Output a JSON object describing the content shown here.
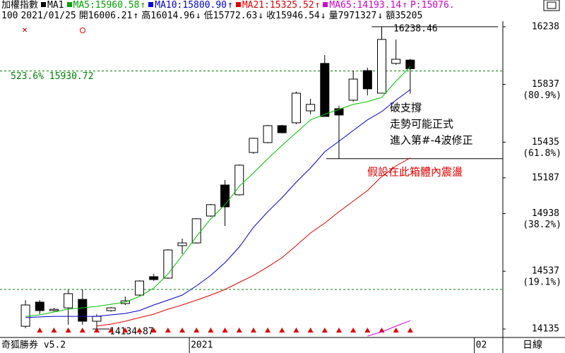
{
  "header": {
    "line1": [
      {
        "text": "加權指數",
        "color": "#000000"
      },
      {
        "text": "MA1",
        "color": "#000000"
      },
      {
        "text": "MA5:15960.58",
        "color": "#00a000"
      },
      {
        "text": "↑",
        "color": "#00a000"
      },
      {
        "text": "MA10:15800.90",
        "color": "#0000d0"
      },
      {
        "text": "↑",
        "color": "#0000d0"
      },
      {
        "text": "MA21:15325.52",
        "color": "#e00000"
      },
      {
        "text": "↑",
        "color": "#e00000"
      },
      {
        "text": "MA65:14193.14",
        "color": "#d000d0"
      },
      {
        "text": "↑",
        "color": "#d000d0"
      },
      {
        "text": "P:15076.",
        "color": "#d000d0"
      }
    ],
    "line2": [
      {
        "text": "100",
        "color": "#000000"
      },
      {
        "text": "2021/01/25",
        "color": "#000000"
      },
      {
        "text": "開16006.21",
        "color": "#000000"
      },
      {
        "text": "↑",
        "color": "#000000"
      },
      {
        "text": "高16014.96",
        "color": "#000000"
      },
      {
        "text": "↓",
        "color": "#000000"
      },
      {
        "text": "低15772.63",
        "color": "#000000"
      },
      {
        "text": "↓",
        "color": "#000000"
      },
      {
        "text": "收15946.54",
        "color": "#000000"
      },
      {
        "text": "↓",
        "color": "#000000"
      },
      {
        "text": "量7971327",
        "color": "#000000"
      },
      {
        "text": "↓",
        "color": "#000000"
      },
      {
        "text": "額35205",
        "color": "#000000"
      }
    ]
  },
  "chart_data": {
    "type": "candlestick",
    "categories": [
      null,
      null,
      null,
      null,
      null,
      null,
      null,
      null,
      null,
      null,
      null,
      null,
      "2021",
      null,
      null,
      null,
      null,
      null,
      null,
      null,
      null,
      null,
      null,
      null,
      null,
      null,
      null,
      null,
      null,
      null,
      null,
      null,
      "02",
      null
    ],
    "open": [
      14154,
      14322,
      14263,
      14282,
      14341,
      14189,
      14263,
      14312,
      14371,
      14499,
      14489,
      14715,
      14734,
      14921,
      15137,
      15069,
      15363,
      15432,
      15550,
      15570,
      15653,
      15983,
      15668,
      15727,
      15933,
      15776,
      15983,
      16006.21,
      null,
      null,
      null,
      null,
      null,
      null
    ],
    "high": [
      14336,
      14336,
      14282,
      14410,
      14410,
      14238,
      14288,
      14361,
      14474,
      14518,
      14690,
      14764,
      14907,
      15005,
      15172,
      15280,
      15467,
      15555,
      15555,
      15786,
      15737,
      16041,
      15688,
      15933,
      15953,
      16238.46,
      16150,
      16014.96,
      null,
      null,
      null,
      null,
      null,
      null
    ],
    "low": [
      14140,
      14238,
      14258,
      14164,
      14164,
      14134.87,
      14255,
      14302,
      14366,
      14469,
      14484,
      14656,
      14730,
      14916,
      14852,
      15064,
      15354,
      15427,
      15496,
      15560,
      15629,
      15614,
      15319,
      15717,
      15761,
      15776,
      15973,
      15772.63,
      null,
      null,
      null,
      null,
      null,
      null
    ],
    "close": [
      14302,
      14263,
      14272,
      14381,
      14189,
      14223,
      14282,
      14331,
      14469,
      14479,
      14685,
      14734,
      14902,
      15000,
      14985,
      15275,
      15462,
      15550,
      15501,
      15776,
      15698,
      15614,
      15624,
      15874,
      15806,
      16150,
      16012,
      15946.54,
      null,
      null,
      null,
      null,
      null,
      null
    ],
    "up_color": "#ffffff",
    "down_color": "#000000",
    "series": [
      {
        "name": "MA5",
        "color": "#00c000",
        "values": [
          14223,
          14233,
          14253,
          14273,
          14282,
          14292,
          14307,
          14322,
          14361,
          14420,
          14518,
          14646,
          14779,
          14902,
          15000,
          15128,
          15221,
          15319,
          15413,
          15501,
          15590,
          15629,
          15663,
          15698,
          15717,
          15747,
          15860,
          15960.58,
          null,
          null,
          null,
          null,
          null,
          null
        ]
      },
      {
        "name": "MA10",
        "color": "#0000d0",
        "values": [
          14214,
          14219,
          14223,
          14223,
          14223,
          14223,
          14233,
          14243,
          14263,
          14302,
          14336,
          14371,
          14435,
          14508,
          14597,
          14705,
          14843,
          14951,
          15049,
          15157,
          15255,
          15368,
          15442,
          15516,
          15590,
          15648,
          15727,
          15800.9,
          null,
          null,
          null,
          null,
          null,
          null
        ]
      },
      {
        "name": "MA21",
        "color": "#e00000",
        "values": [
          null,
          null,
          null,
          null,
          null,
          14155,
          14169,
          14189,
          14214,
          14238,
          14273,
          14302,
          14336,
          14371,
          14410,
          14459,
          14508,
          14567,
          14631,
          14715,
          14803,
          14872,
          14951,
          15024,
          15098,
          15196,
          15270,
          15325.52,
          null,
          null,
          null,
          null,
          null,
          null
        ]
      },
      {
        "name": "MA65",
        "color": "#d000d0",
        "values": [
          null,
          null,
          null,
          null,
          null,
          null,
          null,
          null,
          null,
          null,
          null,
          null,
          null,
          null,
          null,
          null,
          null,
          null,
          null,
          null,
          null,
          null,
          null,
          null,
          14086,
          14115,
          14155,
          14193.14,
          null,
          null,
          null,
          null,
          null,
          null
        ]
      }
    ],
    "ylim": [
      14076,
      16277
    ],
    "yticks": [
      16238,
      15837,
      15435,
      15187,
      14938,
      14537,
      14135
    ],
    "ytick_notes": [
      null,
      "(80.9%)",
      "(61.8%)",
      null,
      "(38.2%)",
      "(19.1%)",
      null
    ],
    "levels": [
      {
        "value": 15930.72,
        "label": "523.6% 15930.72"
      },
      {
        "value": 14410,
        "label": null
      }
    ],
    "high_mark": {
      "value": 16238.46,
      "label": "16238.46"
    },
    "low_mark": {
      "value": 14134.87,
      "label": "14134.87"
    },
    "support": 15320,
    "notes": [
      "破支撐",
      "走勢可能正式",
      "進入第#-4波修正"
    ],
    "box_note": "假設在此箱體內震盪"
  },
  "footer": {
    "app": "奇狐勝券 v5.2",
    "period": "日線"
  }
}
